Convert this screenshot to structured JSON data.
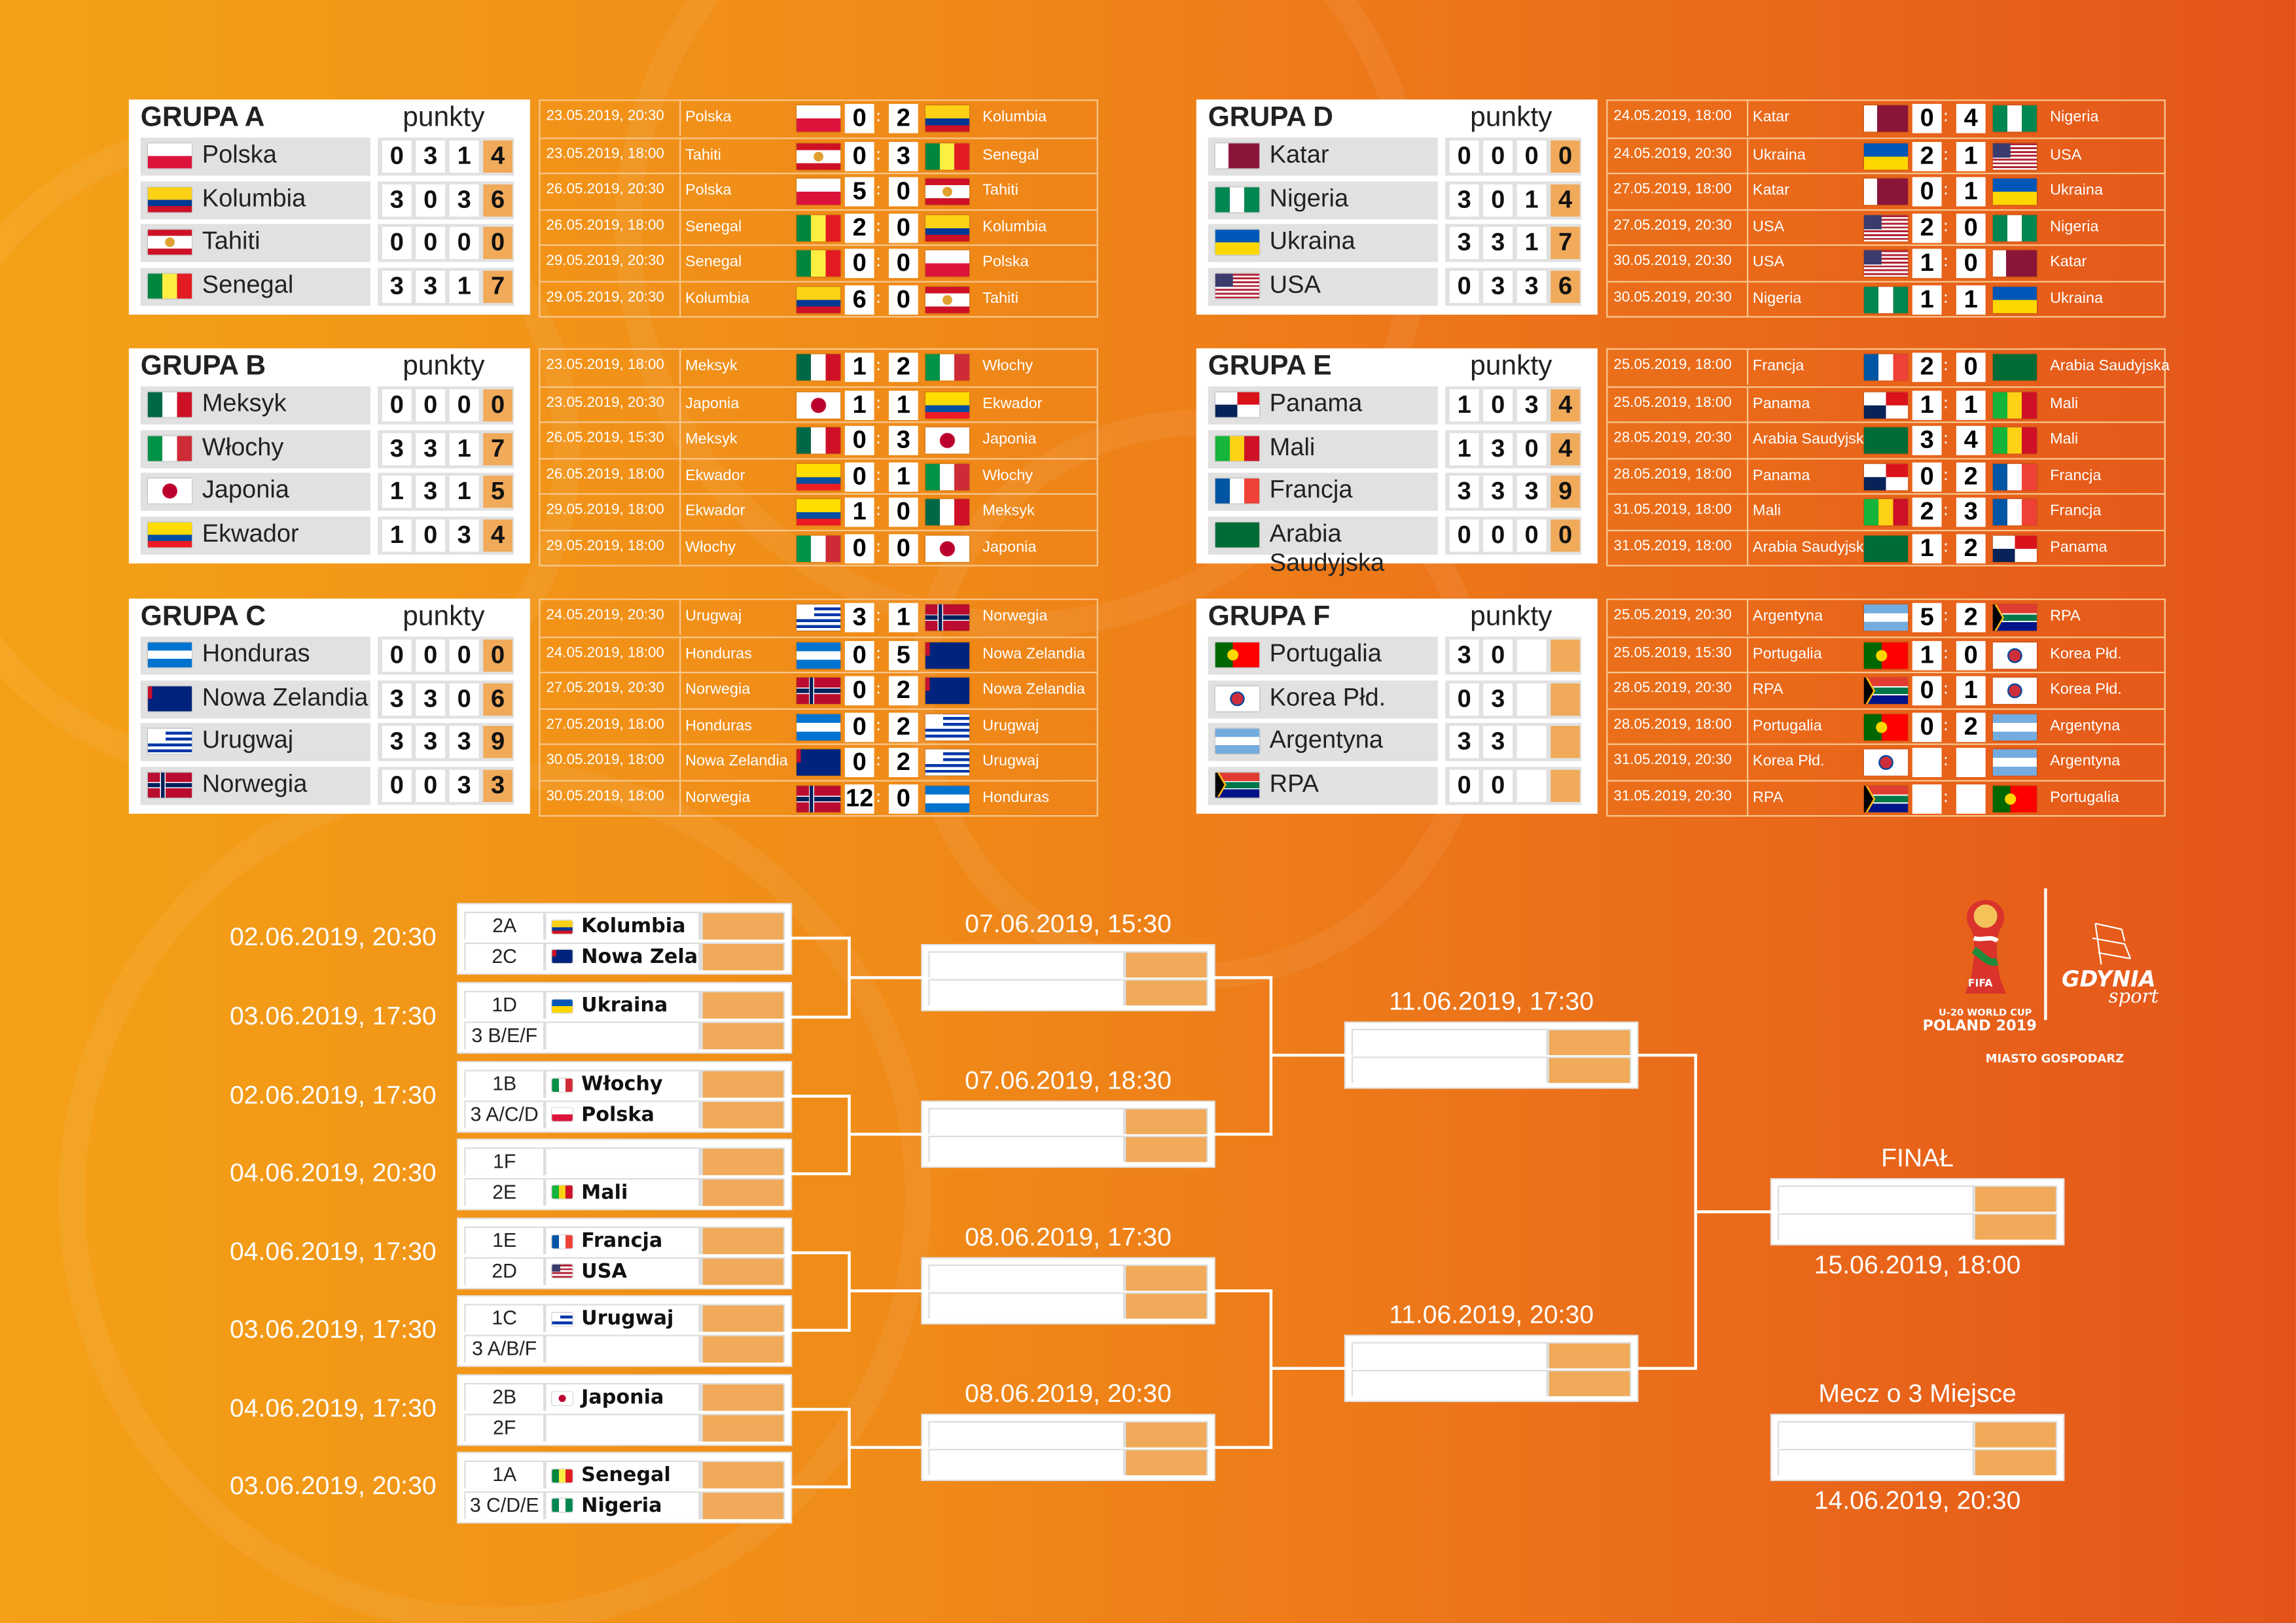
{
  "standings_header": "punkty",
  "groups": [
    {
      "title": "GRUPA A",
      "teams": [
        {
          "name": "Polska",
          "stats": [
            "0",
            "3",
            "1",
            "4"
          ]
        },
        {
          "name": "Kolumbia",
          "stats": [
            "3",
            "0",
            "3",
            "6"
          ]
        },
        {
          "name": "Tahiti",
          "stats": [
            "0",
            "0",
            "0",
            "0"
          ]
        },
        {
          "name": "Senegal",
          "stats": [
            "3",
            "3",
            "1",
            "7"
          ]
        }
      ],
      "matches": [
        {
          "date": "23.05.2019, 20:30",
          "home": "Polska",
          "hs": "0",
          "as": "2",
          "away": "Kolumbia"
        },
        {
          "date": "23.05.2019, 18:00",
          "home": "Tahiti",
          "hs": "0",
          "as": "3",
          "away": "Senegal"
        },
        {
          "date": "26.05.2019, 20:30",
          "home": "Polska",
          "hs": "5",
          "as": "0",
          "away": "Tahiti"
        },
        {
          "date": "26.05.2019, 18:00",
          "home": "Senegal",
          "hs": "2",
          "as": "0",
          "away": "Kolumbia"
        },
        {
          "date": "29.05.2019, 20:30",
          "home": "Senegal",
          "hs": "0",
          "as": "0",
          "away": "Polska"
        },
        {
          "date": "29.05.2019, 20:30",
          "home": "Kolumbia",
          "hs": "6",
          "as": "0",
          "away": "Tahiti"
        }
      ]
    },
    {
      "title": "GRUPA B",
      "teams": [
        {
          "name": "Meksyk",
          "stats": [
            "0",
            "0",
            "0",
            "0"
          ]
        },
        {
          "name": "Włochy",
          "stats": [
            "3",
            "3",
            "1",
            "7"
          ]
        },
        {
          "name": "Japonia",
          "stats": [
            "1",
            "3",
            "1",
            "5"
          ]
        },
        {
          "name": "Ekwador",
          "stats": [
            "1",
            "0",
            "3",
            "4"
          ]
        }
      ],
      "matches": [
        {
          "date": "23.05.2019, 18:00",
          "home": "Meksyk",
          "hs": "1",
          "as": "2",
          "away": "Włochy"
        },
        {
          "date": "23.05.2019, 20:30",
          "home": "Japonia",
          "hs": "1",
          "as": "1",
          "away": "Ekwador"
        },
        {
          "date": "26.05.2019, 15:30",
          "home": "Meksyk",
          "hs": "0",
          "as": "3",
          "away": "Japonia"
        },
        {
          "date": "26.05.2019, 18:00",
          "home": "Ekwador",
          "hs": "0",
          "as": "1",
          "away": "Włochy"
        },
        {
          "date": "29.05.2019, 18:00",
          "home": "Ekwador",
          "hs": "1",
          "as": "0",
          "away": "Meksyk"
        },
        {
          "date": "29.05.2019, 18:00",
          "home": "Włochy",
          "hs": "0",
          "as": "0",
          "away": "Japonia"
        }
      ]
    },
    {
      "title": "GRUPA C",
      "teams": [
        {
          "name": "Honduras",
          "stats": [
            "0",
            "0",
            "0",
            "0"
          ]
        },
        {
          "name": "Nowa Zelandia",
          "stats": [
            "3",
            "3",
            "0",
            "6"
          ]
        },
        {
          "name": "Urugwaj",
          "stats": [
            "3",
            "3",
            "3",
            "9"
          ]
        },
        {
          "name": "Norwegia",
          "stats": [
            "0",
            "0",
            "3",
            "3"
          ]
        }
      ],
      "matches": [
        {
          "date": "24.05.2019, 20:30",
          "home": "Urugwaj",
          "hs": "3",
          "as": "1",
          "away": "Norwegia"
        },
        {
          "date": "24.05.2019, 18:00",
          "home": "Honduras",
          "hs": "0",
          "as": "5",
          "away": "Nowa Zelandia"
        },
        {
          "date": "27.05.2019, 20:30",
          "home": "Norwegia",
          "hs": "0",
          "as": "2",
          "away": "Nowa Zelandia"
        },
        {
          "date": "27.05.2019, 18:00",
          "home": "Honduras",
          "hs": "0",
          "as": "2",
          "away": "Urugwaj"
        },
        {
          "date": "30.05.2019, 18:00",
          "home": "Nowa Zelandia",
          "hs": "0",
          "as": "2",
          "away": "Urugwaj"
        },
        {
          "date": "30.05.2019, 18:00",
          "home": "Norwegia",
          "hs": "12",
          "as": "0",
          "away": "Honduras"
        }
      ]
    },
    {
      "title": "GRUPA D",
      "teams": [
        {
          "name": "Katar",
          "stats": [
            "0",
            "0",
            "0",
            "0"
          ]
        },
        {
          "name": "Nigeria",
          "stats": [
            "3",
            "0",
            "1",
            "4"
          ]
        },
        {
          "name": "Ukraina",
          "stats": [
            "3",
            "3",
            "1",
            "7"
          ]
        },
        {
          "name": "USA",
          "stats": [
            "0",
            "3",
            "3",
            "6"
          ]
        }
      ],
      "matches": [
        {
          "date": "24.05.2019, 18:00",
          "home": "Katar",
          "hs": "0",
          "as": "4",
          "away": "Nigeria"
        },
        {
          "date": "24.05.2019, 20:30",
          "home": "Ukraina",
          "hs": "2",
          "as": "1",
          "away": "USA"
        },
        {
          "date": "27.05.2019, 18:00",
          "home": "Katar",
          "hs": "0",
          "as": "1",
          "away": "Ukraina"
        },
        {
          "date": "27.05.2019, 20:30",
          "home": "USA",
          "hs": "2",
          "as": "0",
          "away": "Nigeria"
        },
        {
          "date": "30.05.2019, 20:30",
          "home": "USA",
          "hs": "1",
          "as": "0",
          "away": "Katar"
        },
        {
          "date": "30.05.2019, 20:30",
          "home": "Nigeria",
          "hs": "1",
          "as": "1",
          "away": "Ukraina"
        }
      ]
    },
    {
      "title": "GRUPA E",
      "teams": [
        {
          "name": "Panama",
          "stats": [
            "1",
            "0",
            "3",
            "4"
          ]
        },
        {
          "name": "Mali",
          "stats": [
            "1",
            "3",
            "0",
            "4"
          ]
        },
        {
          "name": "Francja",
          "stats": [
            "3",
            "3",
            "3",
            "9"
          ]
        },
        {
          "name": "Arabia Saudyjska",
          "stats": [
            "0",
            "0",
            "0",
            "0"
          ]
        }
      ],
      "matches": [
        {
          "date": "25.05.2019, 18:00",
          "home": "Francja",
          "hs": "2",
          "as": "0",
          "away": "Arabia Saudyjska"
        },
        {
          "date": "25.05.2019, 18:00",
          "home": "Panama",
          "hs": "1",
          "as": "1",
          "away": "Mali"
        },
        {
          "date": "28.05.2019, 20:30",
          "home": "Arabia Saudyjska",
          "hs": "3",
          "as": "4",
          "away": "Mali"
        },
        {
          "date": "28.05.2019, 18:00",
          "home": "Panama",
          "hs": "0",
          "as": "2",
          "away": "Francja"
        },
        {
          "date": "31.05.2019, 18:00",
          "home": "Mali",
          "hs": "2",
          "as": "3",
          "away": "Francja"
        },
        {
          "date": "31.05.2019, 18:00",
          "home": "Arabia Saudyjska",
          "hs": "1",
          "as": "2",
          "away": "Panama"
        }
      ]
    },
    {
      "title": "GRUPA F",
      "teams": [
        {
          "name": "Portugalia",
          "stats": [
            "3",
            "0",
            "",
            ""
          ]
        },
        {
          "name": "Korea Płd.",
          "stats": [
            "0",
            "3",
            "",
            ""
          ]
        },
        {
          "name": "Argentyna",
          "stats": [
            "3",
            "3",
            "",
            ""
          ]
        },
        {
          "name": "RPA",
          "stats": [
            "0",
            "0",
            "",
            ""
          ]
        }
      ],
      "matches": [
        {
          "date": "25.05.2019, 20:30",
          "home": "Argentyna",
          "hs": "5",
          "as": "2",
          "away": "RPA"
        },
        {
          "date": "25.05.2019, 15:30",
          "home": "Portugalia",
          "hs": "1",
          "as": "0",
          "away": "Korea Płd."
        },
        {
          "date": "28.05.2019, 20:30",
          "home": "RPA",
          "hs": "0",
          "as": "1",
          "away": "Korea Płd."
        },
        {
          "date": "28.05.2019, 18:00",
          "home": "Portugalia",
          "hs": "0",
          "as": "2",
          "away": "Argentyna"
        },
        {
          "date": "31.05.2019, 20:30",
          "home": "Korea Płd.",
          "hs": "",
          "as": "",
          "away": "Argentyna"
        },
        {
          "date": "31.05.2019, 20:30",
          "home": "RPA",
          "hs": "",
          "as": "",
          "away": "Portugalia"
        }
      ]
    }
  ],
  "round_of_16": [
    {
      "date": "02.06.2019, 20:30",
      "slots": [
        {
          "code": "2A",
          "team": "Kolumbia"
        },
        {
          "code": "2C",
          "team": "Nowa Zelandia"
        }
      ]
    },
    {
      "date": "03.06.2019, 17:30",
      "slots": [
        {
          "code": "1D",
          "team": "Ukraina"
        },
        {
          "code": "3 B/E/F",
          "team": ""
        }
      ]
    },
    {
      "date": "02.06.2019, 17:30",
      "slots": [
        {
          "code": "1B",
          "team": "Włochy"
        },
        {
          "code": "3 A/C/D",
          "team": "Polska"
        }
      ]
    },
    {
      "date": "04.06.2019, 20:30",
      "slots": [
        {
          "code": "1F",
          "team": ""
        },
        {
          "code": "2E",
          "team": "Mali"
        }
      ]
    },
    {
      "date": "04.06.2019, 17:30",
      "slots": [
        {
          "code": "1E",
          "team": "Francja"
        },
        {
          "code": "2D",
          "team": "USA"
        }
      ]
    },
    {
      "date": "03.06.2019, 17:30",
      "slots": [
        {
          "code": "1C",
          "team": "Urugwaj"
        },
        {
          "code": "3 A/B/F",
          "team": ""
        }
      ]
    },
    {
      "date": "04.06.2019, 17:30",
      "slots": [
        {
          "code": "2B",
          "team": "Japonia"
        },
        {
          "code": "2F",
          "team": ""
        }
      ]
    },
    {
      "date": "03.06.2019, 20:30",
      "slots": [
        {
          "code": "1A",
          "team": "Senegal"
        },
        {
          "code": "3 C/D/E",
          "team": "Nigeria"
        }
      ]
    }
  ],
  "quarter_finals": [
    {
      "date": "07.06.2019, 15:30"
    },
    {
      "date": "07.06.2019, 18:30"
    },
    {
      "date": "08.06.2019, 17:30"
    },
    {
      "date": "08.06.2019, 20:30"
    }
  ],
  "semi_finals": [
    {
      "date": "11.06.2019, 17:30"
    },
    {
      "date": "11.06.2019, 20:30"
    }
  ],
  "final": {
    "label": "FINAŁ",
    "date": "15.06.2019, 18:00"
  },
  "third_place": {
    "label": "Mecz o 3 Miejsce",
    "date": "14.06.2019, 20:30"
  },
  "logos": {
    "fifa": "FIFA",
    "cup": "U-20 WORLD CUP",
    "host": "POLAND 2019",
    "gdynia": "GDYNIA",
    "sport": "sport",
    "host_city": "MIASTO GOSPODARZ"
  },
  "colors": {
    "background_left": "#f4a117",
    "background_right": "#e4541a",
    "score_highlight": "#f0aa5a"
  }
}
